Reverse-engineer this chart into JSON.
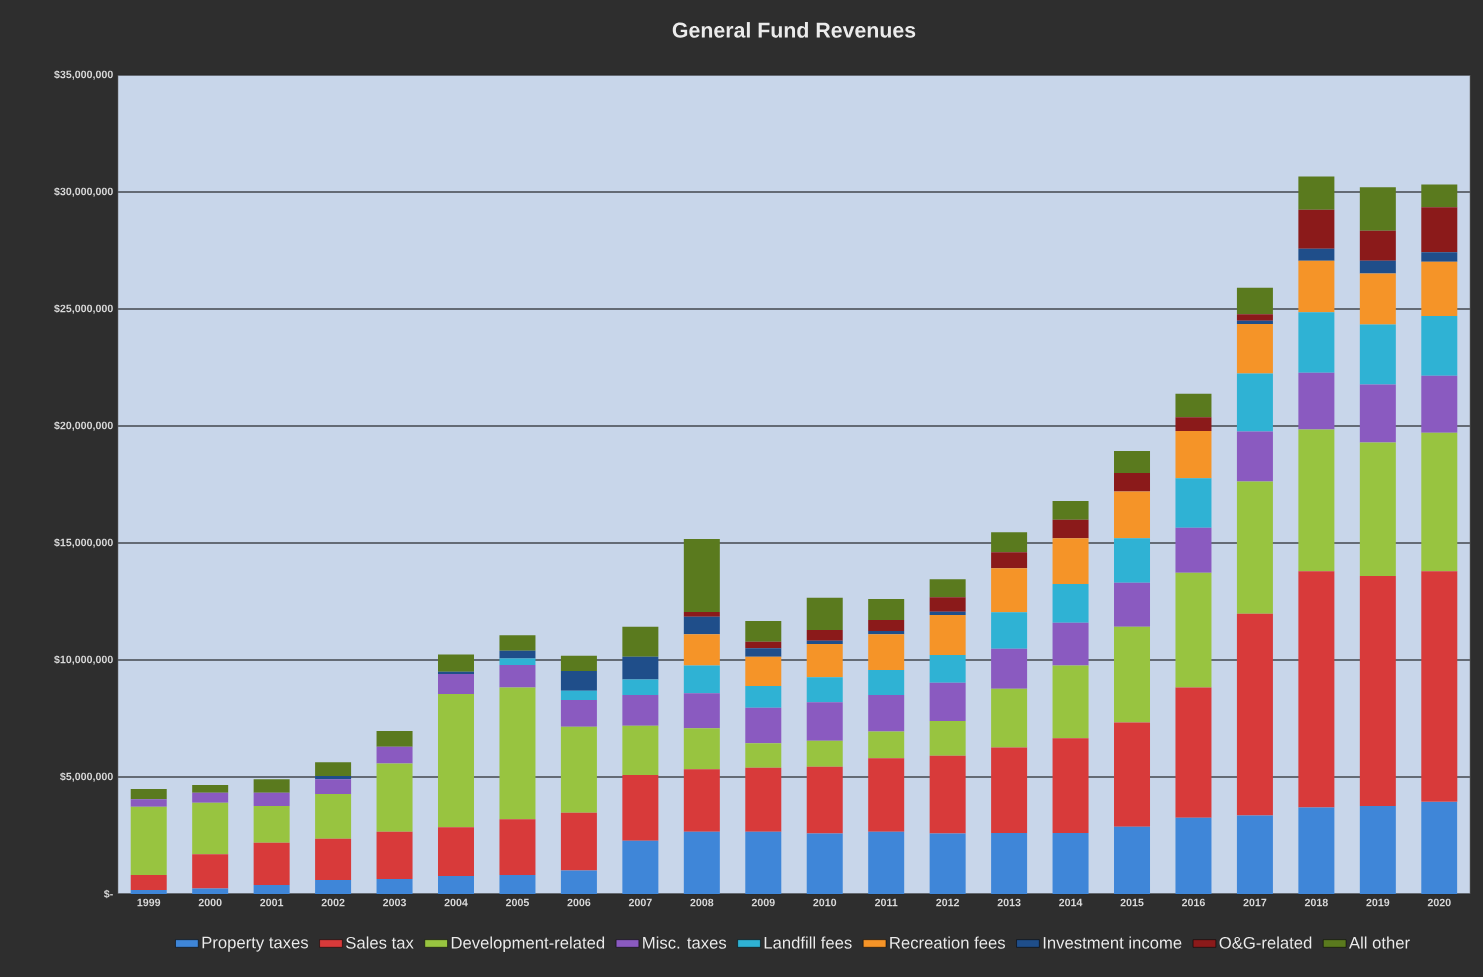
{
  "chart_data": {
    "type": "bar",
    "stacked": true,
    "title": "General Fund Revenues",
    "categories": [
      "1999",
      "2000",
      "2001",
      "2002",
      "2003",
      "2004",
      "2005",
      "2006",
      "2007",
      "2008",
      "2009",
      "2010",
      "2011",
      "2012",
      "2013",
      "2014",
      "2015",
      "2016",
      "2017",
      "2018",
      "2019",
      "2020"
    ],
    "series": [
      {
        "name": "Property taxes",
        "color": "#3f86d8",
        "values": [
          170000,
          240000,
          380000,
          600000,
          640000,
          770000,
          810000,
          1000000,
          2280000,
          2660000,
          2660000,
          2590000,
          2660000,
          2590000,
          2610000,
          2610000,
          2870000,
          3260000,
          3350000,
          3700000,
          3760000,
          3940000
        ]
      },
      {
        "name": "Sales tax",
        "color": "#d83a3a",
        "values": [
          640000,
          1460000,
          1810000,
          1760000,
          2020000,
          2080000,
          2380000,
          2470000,
          2810000,
          2670000,
          2740000,
          2850000,
          3140000,
          3320000,
          3650000,
          4050000,
          4460000,
          5560000,
          8630000,
          10090000,
          9830000,
          9850000
        ]
      },
      {
        "name": "Development-related",
        "color": "#98c440",
        "values": [
          2920000,
          2200000,
          1570000,
          1910000,
          2920000,
          5700000,
          5640000,
          3680000,
          2100000,
          1750000,
          1040000,
          1110000,
          1140000,
          1480000,
          2510000,
          3100000,
          4090000,
          4910000,
          5650000,
          6060000,
          5700000,
          5920000
        ]
      },
      {
        "name": "Misc. taxes",
        "color": "#8a5ac0",
        "values": [
          320000,
          430000,
          570000,
          630000,
          710000,
          850000,
          960000,
          1140000,
          1310000,
          1500000,
          1520000,
          1640000,
          1560000,
          1640000,
          1710000,
          1830000,
          1880000,
          1920000,
          2130000,
          2430000,
          2480000,
          2440000
        ]
      },
      {
        "name": "Landfill fees",
        "color": "#2fb2d4",
        "values": [
          null,
          null,
          null,
          null,
          null,
          null,
          270000,
          400000,
          670000,
          1180000,
          930000,
          1070000,
          1070000,
          1180000,
          1560000,
          1660000,
          1900000,
          2120000,
          2480000,
          2580000,
          2570000,
          2550000
        ]
      },
      {
        "name": "Recreation fees",
        "color": "#f59428",
        "values": [
          null,
          null,
          null,
          null,
          null,
          null,
          null,
          null,
          null,
          1340000,
          1250000,
          1420000,
          1530000,
          1710000,
          1880000,
          1950000,
          2000000,
          2020000,
          2120000,
          2200000,
          2180000,
          2320000
        ]
      },
      {
        "name": "Investment income",
        "color": "#1f4e8a",
        "values": [
          null,
          null,
          null,
          140000,
          null,
          100000,
          340000,
          840000,
          970000,
          750000,
          360000,
          140000,
          140000,
          140000,
          null,
          null,
          null,
          null,
          140000,
          510000,
          540000,
          410000
        ]
      },
      {
        "name": "O&G-related",
        "color": "#8b1a1a",
        "values": [
          null,
          null,
          null,
          null,
          null,
          null,
          null,
          null,
          null,
          200000,
          280000,
          460000,
          470000,
          620000,
          680000,
          790000,
          790000,
          580000,
          280000,
          1670000,
          1280000,
          1920000
        ]
      },
      {
        "name": "All other",
        "color": "#5a7a1e",
        "values": [
          440000,
          330000,
          570000,
          590000,
          680000,
          740000,
          660000,
          650000,
          1280000,
          3120000,
          890000,
          1380000,
          900000,
          770000,
          860000,
          800000,
          940000,
          1010000,
          1130000,
          1420000,
          1860000,
          970000
        ]
      }
    ],
    "ylim": [
      0,
      35000000
    ],
    "yticks": [
      {
        "value": 0,
        "label": "$-"
      },
      {
        "value": 5000000,
        "label": "$5,000,000"
      },
      {
        "value": 10000000,
        "label": "$10,000,000"
      },
      {
        "value": 15000000,
        "label": "$15,000,000"
      },
      {
        "value": 20000000,
        "label": "$20,000,000"
      },
      {
        "value": 25000000,
        "label": "$25,000,000"
      },
      {
        "value": 30000000,
        "label": "$30,000,000"
      },
      {
        "value": 35000000,
        "label": "$35,000,000"
      }
    ],
    "grid": "y",
    "legend": "bottom"
  }
}
